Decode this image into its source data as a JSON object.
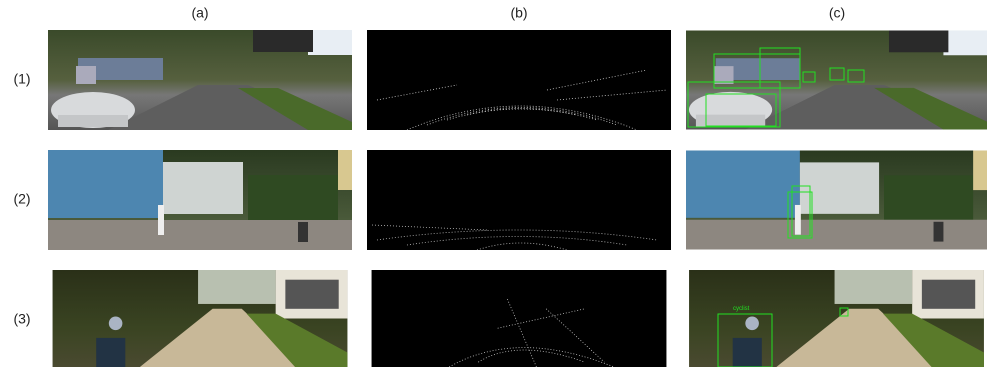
{
  "columns": [
    "(a)",
    "(b)",
    "(c)"
  ],
  "rows": [
    "(1)",
    "(2)",
    "(3)"
  ],
  "annotations": {
    "cyclist_label": "cyclist"
  }
}
